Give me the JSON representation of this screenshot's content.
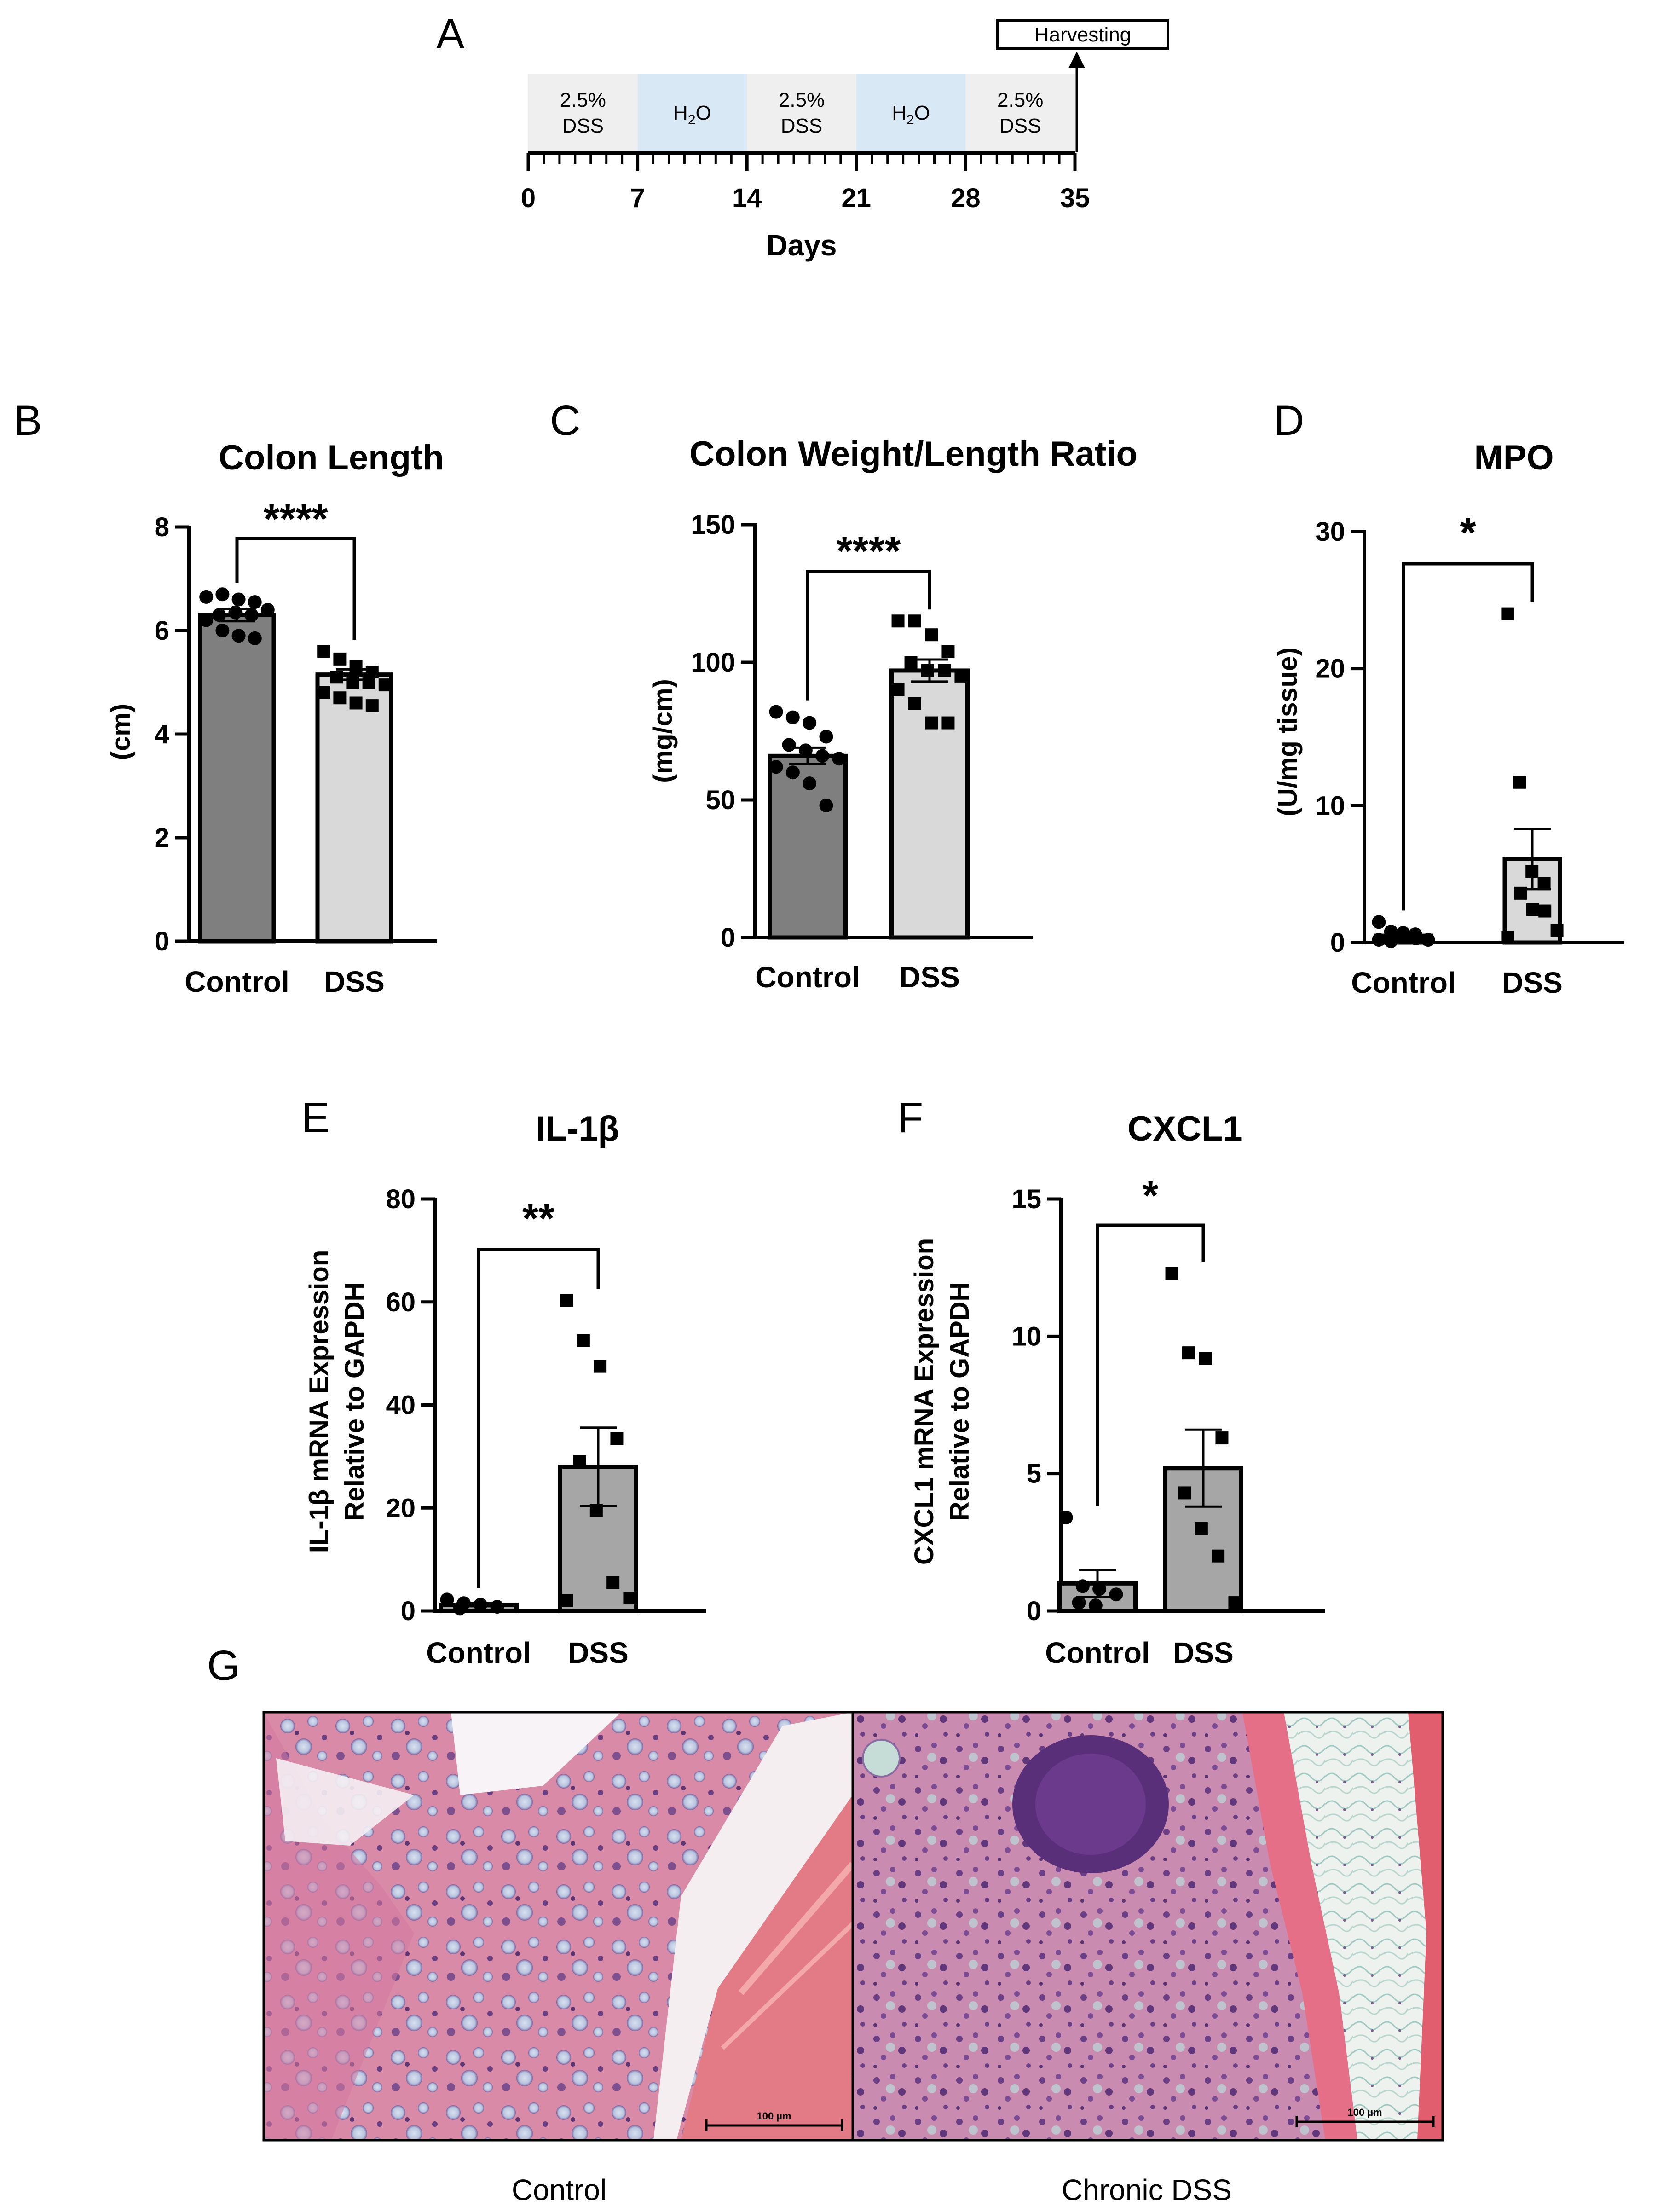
{
  "panels": {
    "A": {
      "letter": "A",
      "harvest_label": "Harvesting",
      "xlabel": "Days",
      "ticks": [
        "0",
        "7",
        "14",
        "21",
        "28",
        "35"
      ],
      "segments": [
        {
          "label1": "2.5%",
          "label2": "DSS",
          "start": 0,
          "end": 7,
          "color": "#efefef"
        },
        {
          "label1": "H",
          "sub": "2",
          "label2": "O",
          "start": 7,
          "end": 14,
          "color": "#d9e8f5"
        },
        {
          "label1": "2.5%",
          "label2": "DSS",
          "start": 14,
          "end": 21,
          "color": "#efefef"
        },
        {
          "label1": "H",
          "sub": "2",
          "label2": "O",
          "start": 21,
          "end": 28,
          "color": "#d9e8f5"
        },
        {
          "label1": "2.5%",
          "label2": "DSS",
          "start": 28,
          "end": 35,
          "color": "#efefef"
        }
      ]
    },
    "B": {
      "letter": "B",
      "title": "Colon Length",
      "ylabel": "(cm)",
      "sig": "****",
      "categories": [
        "Control",
        "DSS"
      ]
    },
    "C": {
      "letter": "C",
      "title": "Colon Weight/Length Ratio",
      "ylabel": "(mg/cm)",
      "sig": "****",
      "categories": [
        "Control",
        "DSS"
      ]
    },
    "D": {
      "letter": "D",
      "title": "MPO",
      "ylabel": "(U/mg tissue)",
      "sig": "*",
      "categories": [
        "Control",
        "DSS"
      ]
    },
    "E": {
      "letter": "E",
      "title": "IL-1β",
      "ylabel1": "IL-1β mRNA Expression",
      "ylabel2": "Relative to GAPDH",
      "sig": "**",
      "categories": [
        "Control",
        "DSS"
      ]
    },
    "F": {
      "letter": "F",
      "title": "CXCL1",
      "ylabel1": "CXCL1 mRNA Expression",
      "ylabel2": "Relative to GAPDH",
      "sig": "*",
      "categories": [
        "Control",
        "DSS"
      ]
    },
    "G": {
      "letter": "G",
      "scale_bar": "100 µm",
      "captions": [
        "Control",
        "Chronic  DSS"
      ]
    }
  },
  "colors": {
    "control_bar": "#7f7f7f",
    "dss_bar": "#d9d9d9",
    "grey_bar": "#a6a6a6",
    "h2o": "#d9e8f5",
    "dss_seg": "#efefef"
  },
  "chart_data": [
    {
      "panel": "B",
      "type": "bar",
      "title": "Colon Length",
      "ylabel": "(cm)",
      "categories": [
        "Control",
        "DSS"
      ],
      "ylim": [
        0,
        8
      ],
      "yticks": [
        0,
        2,
        4,
        6,
        8
      ],
      "values": [
        6.3,
        5.15
      ],
      "sem": [
        0.12,
        0.1
      ],
      "points": [
        [
          6.65,
          6.7,
          6.6,
          6.55,
          6.3,
          6.35,
          6.3,
          6.4,
          6.2,
          6.0,
          5.9,
          5.85
        ],
        [
          5.6,
          5.45,
          5.3,
          5.2,
          5.1,
          5.0,
          5.0,
          4.95,
          4.8,
          4.7,
          4.6,
          4.55
        ]
      ],
      "markers": [
        "circle",
        "square"
      ],
      "significance": "****"
    },
    {
      "panel": "C",
      "type": "bar",
      "title": "Colon Weight/Length Ratio",
      "ylabel": "(mg/cm)",
      "categories": [
        "Control",
        "DSS"
      ],
      "ylim": [
        0,
        150
      ],
      "yticks": [
        0,
        50,
        100,
        150
      ],
      "values": [
        66,
        97
      ],
      "sem": [
        3,
        4
      ],
      "points": [
        [
          82,
          80,
          78,
          73,
          70,
          68,
          66,
          65,
          62,
          60,
          56,
          48
        ],
        [
          115,
          115,
          110,
          104,
          100,
          97,
          97,
          95,
          90,
          85,
          78,
          78
        ]
      ],
      "markers": [
        "circle",
        "square"
      ],
      "significance": "****"
    },
    {
      "panel": "D",
      "type": "bar",
      "title": "MPO",
      "ylabel": "(U/mg tissue)",
      "categories": [
        "Control",
        "DSS"
      ],
      "ylim": [
        0,
        30
      ],
      "yticks": [
        0,
        10,
        20,
        30
      ],
      "values": [
        0.5,
        6.1
      ],
      "sem": [
        0.15,
        2.2
      ],
      "points": [
        [
          1.5,
          0.8,
          0.7,
          0.6,
          0.5,
          0.4,
          0.3,
          0.2,
          0.2,
          0.1
        ],
        [
          24,
          11.7,
          5.2,
          4.3,
          3.6,
          2.4,
          2.3,
          0.9,
          0.4
        ]
      ],
      "markers": [
        "circle",
        "square"
      ],
      "significance": "*"
    },
    {
      "panel": "E",
      "type": "bar",
      "title": "IL-1β",
      "ylabel": "IL-1β mRNA Expression Relative to GAPDH",
      "categories": [
        "Control",
        "DSS"
      ],
      "ylim": [
        0,
        80
      ],
      "yticks": [
        0,
        20,
        40,
        60,
        80
      ],
      "values": [
        1.2,
        28
      ],
      "sem": [
        0.3,
        7.6
      ],
      "points": [
        [
          2.2,
          1.5,
          1.2,
          0.8,
          0.5
        ],
        [
          60.3,
          52.5,
          47.5,
          33.5,
          29,
          19.5,
          5.5,
          2.5,
          2
        ]
      ],
      "markers": [
        "circle",
        "square"
      ],
      "significance": "**"
    },
    {
      "panel": "F",
      "type": "bar",
      "title": "CXCL1",
      "ylabel": "CXCL1 mRNA Expression Relative to GAPDH",
      "categories": [
        "Control",
        "DSS"
      ],
      "ylim": [
        0,
        15
      ],
      "yticks": [
        0,
        5,
        10,
        15
      ],
      "values": [
        1.0,
        5.2
      ],
      "sem": [
        0.5,
        1.4
      ],
      "points": [
        [
          3.4,
          0.9,
          0.8,
          0.6,
          0.3,
          0.2
        ],
        [
          12.3,
          9.4,
          9.2,
          6.3,
          4.3,
          3.0,
          2.0,
          0.3
        ]
      ],
      "markers": [
        "circle",
        "square"
      ],
      "significance": "*"
    }
  ]
}
